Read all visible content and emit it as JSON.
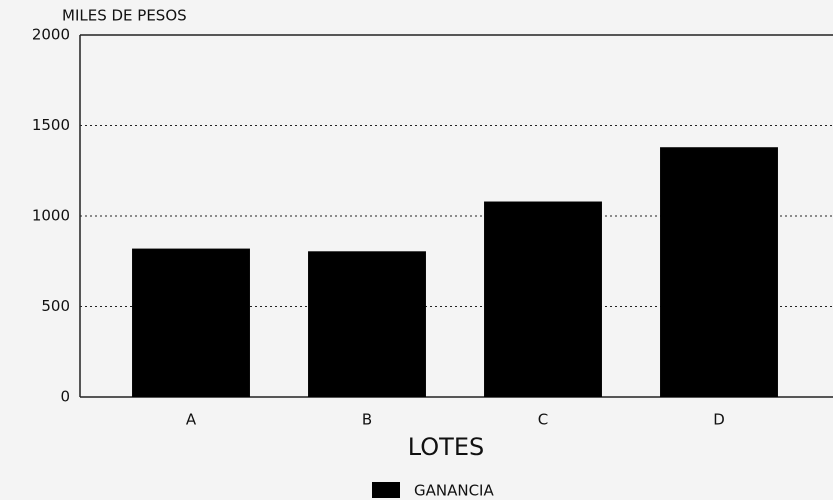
{
  "chart_data": {
    "type": "bar",
    "ylabel": "MILES DE PESOS",
    "xlabel": "LOTES",
    "categories": [
      "A",
      "B",
      "C",
      "D"
    ],
    "series": [
      {
        "name": "GANANCIA",
        "color": "#000000",
        "values": [
          820,
          805,
          1080,
          1380
        ]
      }
    ],
    "ylim": [
      0,
      2000
    ],
    "yticks": [
      0,
      500,
      1000,
      1500,
      2000
    ],
    "grid": true
  }
}
